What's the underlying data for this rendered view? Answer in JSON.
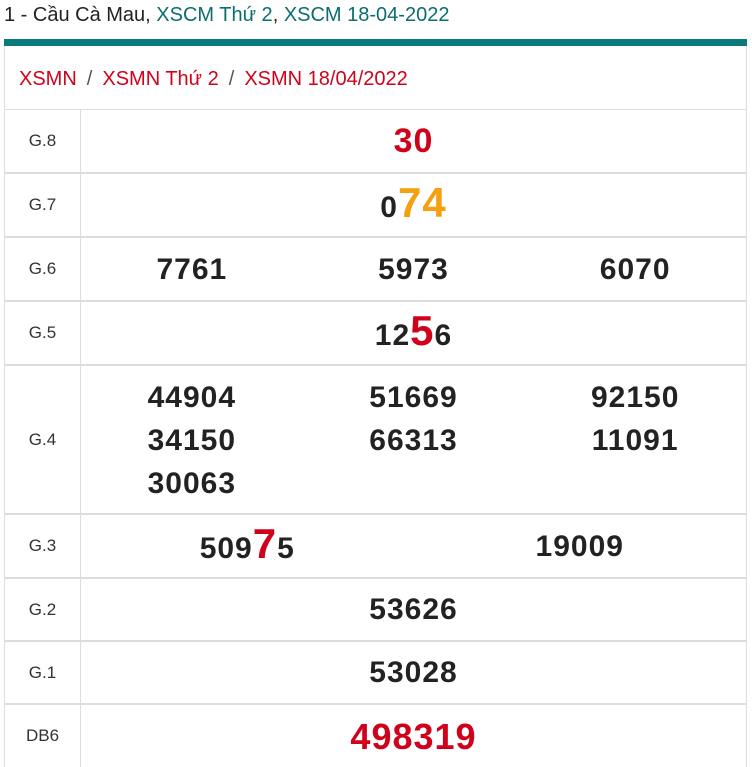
{
  "header": {
    "prefix": "1 - Cầu Cà Mau, ",
    "link1": "XSCM Thứ 2",
    "comma": ", ",
    "link2": "XSCM 18-04-2022"
  },
  "breadcrumb": [
    "XSMN",
    "XSMN Thứ 2",
    "XSMN 18/04/2022"
  ],
  "colors": {
    "accent": "#0a7b7c",
    "red": "#d0021b",
    "orange": "#f5a00f"
  },
  "rows": [
    {
      "label": "G.8",
      "cols": [
        [
          {
            "pre": "",
            "hl": "30",
            "post": "",
            "style": "red-whole"
          }
        ]
      ]
    },
    {
      "label": "G.7",
      "cols": [
        [
          {
            "pre": "0",
            "hl": "74",
            "post": "",
            "style": "orange"
          }
        ]
      ]
    },
    {
      "label": "G.6",
      "cols": [
        [
          {
            "pre": "7761"
          }
        ],
        [
          {
            "pre": "5973"
          }
        ],
        [
          {
            "pre": "6070"
          }
        ]
      ]
    },
    {
      "label": "G.5",
      "cols": [
        [
          {
            "pre": "12",
            "hl": "5",
            "post": "6",
            "style": "red"
          }
        ]
      ]
    },
    {
      "label": "G.4",
      "cols": [
        [
          {
            "pre": "44904"
          },
          {
            "pre": "34150"
          },
          {
            "pre": "30063"
          }
        ],
        [
          {
            "pre": "51669"
          },
          {
            "pre": "66313"
          }
        ],
        [
          {
            "pre": "92150"
          },
          {
            "pre": "11091"
          }
        ]
      ]
    },
    {
      "label": "G.3",
      "cols": [
        [
          {
            "pre": "509",
            "hl": "7",
            "post": "5",
            "style": "red"
          }
        ],
        [
          {
            "pre": "19009"
          }
        ]
      ]
    },
    {
      "label": "G.2",
      "cols": [
        [
          {
            "pre": "53626"
          }
        ]
      ]
    },
    {
      "label": "G.1",
      "cols": [
        [
          {
            "pre": "53028"
          }
        ]
      ]
    },
    {
      "label": "DB6",
      "cols": [
        [
          {
            "pre": "498319",
            "style": "special"
          }
        ]
      ]
    }
  ]
}
